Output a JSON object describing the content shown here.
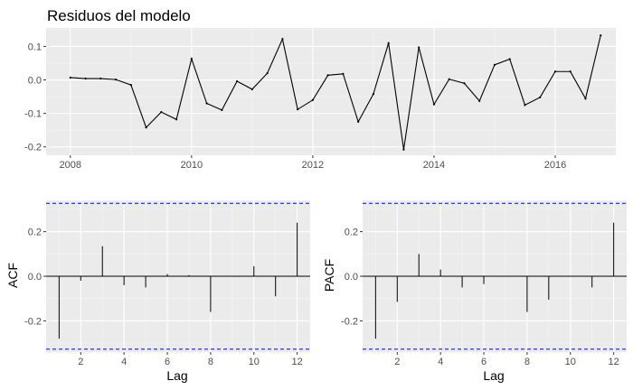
{
  "chart_data": [
    {
      "type": "line",
      "title": "Residuos del modelo",
      "xlabel": "",
      "ylabel": "",
      "xlim": [
        2007.6,
        2017.0
      ],
      "ylim": [
        -0.225,
        0.155
      ],
      "xticks": [
        2008,
        2010,
        2012,
        2014,
        2016
      ],
      "xtick_labels": [
        "2008",
        "2010",
        "2012",
        "2014",
        "2016"
      ],
      "yticks": [
        -0.2,
        -0.1,
        0.0,
        0.1
      ],
      "ytick_labels": [
        "-0.2",
        "-0.1",
        "0.0",
        "0.1"
      ],
      "grid": true,
      "x": [
        2008.0,
        2008.25,
        2008.5,
        2008.75,
        2009.0,
        2009.25,
        2009.5,
        2009.75,
        2010.0,
        2010.25,
        2010.5,
        2010.75,
        2011.0,
        2011.25,
        2011.5,
        2011.75,
        2012.0,
        2012.25,
        2012.5,
        2012.75,
        2013.0,
        2013.25,
        2013.5,
        2013.75,
        2014.0,
        2014.25,
        2014.5,
        2014.75,
        2015.0,
        2015.25,
        2015.5,
        2015.75,
        2016.0,
        2016.25,
        2016.5,
        2016.75
      ],
      "values": [
        0.007,
        0.004,
        0.004,
        0.001,
        -0.015,
        -0.142,
        -0.096,
        -0.118,
        0.063,
        -0.07,
        -0.09,
        -0.004,
        -0.028,
        0.02,
        0.122,
        -0.088,
        -0.06,
        0.014,
        0.018,
        -0.125,
        -0.042,
        0.11,
        -0.208,
        0.097,
        -0.073,
        0.002,
        -0.01,
        -0.063,
        0.045,
        0.062,
        -0.075,
        -0.052,
        0.025,
        0.025,
        -0.056,
        0.133
      ]
    },
    {
      "type": "bar",
      "title": "",
      "xlabel": "Lag",
      "ylabel": "ACF",
      "xlim": [
        0.4,
        12.6
      ],
      "ylim": [
        -0.34,
        0.34
      ],
      "xticks": [
        2,
        4,
        6,
        8,
        10,
        12
      ],
      "xtick_labels": [
        "2",
        "4",
        "6",
        "8",
        "10",
        "12"
      ],
      "yticks": [
        -0.2,
        0.0,
        0.2
      ],
      "ytick_labels": [
        "-0.2",
        "0.0",
        "0.2"
      ],
      "grid": true,
      "confidence_bound": 0.327,
      "lags": [
        1,
        2,
        3,
        4,
        5,
        6,
        7,
        8,
        9,
        10,
        11,
        12
      ],
      "values": [
        -0.28,
        -0.02,
        0.135,
        -0.04,
        -0.05,
        0.01,
        0.005,
        -0.16,
        0.0,
        0.045,
        -0.09,
        0.24
      ]
    },
    {
      "type": "bar",
      "title": "",
      "xlabel": "Lag",
      "ylabel": "PACF",
      "xlim": [
        0.4,
        12.6
      ],
      "ylim": [
        -0.34,
        0.34
      ],
      "xticks": [
        2,
        4,
        6,
        8,
        10,
        12
      ],
      "xtick_labels": [
        "2",
        "4",
        "6",
        "8",
        "10",
        "12"
      ],
      "yticks": [
        -0.2,
        0.0,
        0.2
      ],
      "ytick_labels": [
        "-0.2",
        "0.0",
        "0.2"
      ],
      "grid": true,
      "confidence_bound": 0.327,
      "lags": [
        1,
        2,
        3,
        4,
        5,
        6,
        7,
        8,
        9,
        10,
        11,
        12
      ],
      "values": [
        -0.28,
        -0.115,
        0.1,
        0.03,
        -0.05,
        -0.035,
        0.0,
        -0.16,
        -0.105,
        0.0,
        -0.05,
        0.24
      ]
    }
  ],
  "colors": {
    "panel_background": "#ebebeb",
    "grid_major": "#ffffff",
    "series_line": "#000000",
    "confidence_line": "#0000ff",
    "tick_text": "#4d4d4d"
  }
}
